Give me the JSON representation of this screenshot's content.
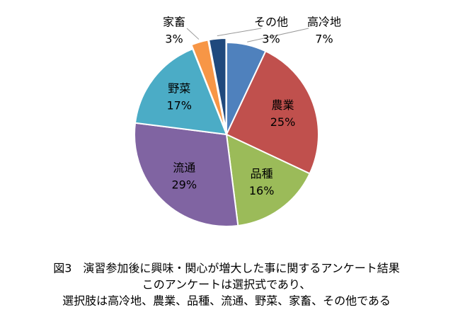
{
  "chart_data": {
    "type": "pie",
    "categories": [
      "高冷地",
      "農業",
      "品種",
      "流通",
      "野菜",
      "家畜",
      "その他"
    ],
    "values": [
      7,
      25,
      16,
      29,
      17,
      3,
      3
    ],
    "value_labels": [
      "7%",
      "25%",
      "16%",
      "29%",
      "17%",
      "3%",
      "3%"
    ],
    "colors": [
      "#4f81bd",
      "#c0504d",
      "#9bbb59",
      "#8064a2",
      "#4bacc6",
      "#f79646",
      "#1f497d"
    ],
    "caption": [
      "図3　演習参加後に興味・関心が増大した事に関するアンケート結果",
      "このアンケートは選択式であり、",
      "選択肢は高冷地、農業、品種、流通、野菜、家畜、その他である"
    ]
  }
}
